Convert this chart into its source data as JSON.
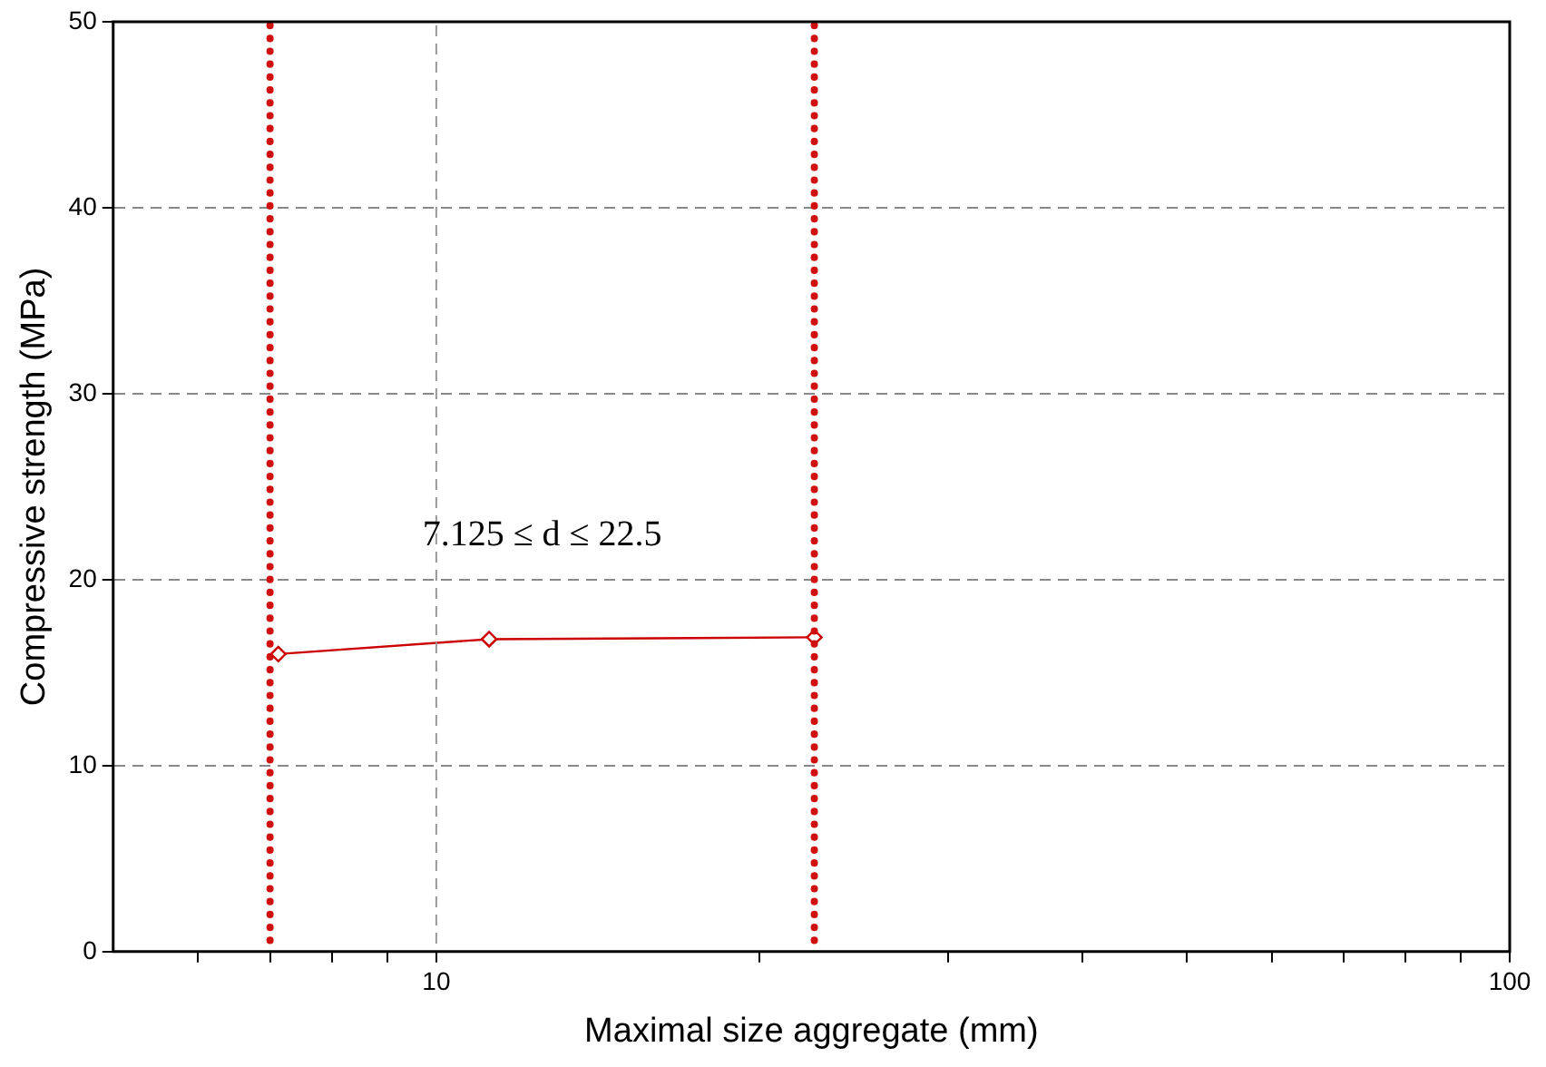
{
  "chart_data": {
    "type": "line",
    "xlabel": "Maximal size aggregate (mm)",
    "ylabel": "Compressive strength (MPa)",
    "x": [
      7.125,
      11.2,
      22.5
    ],
    "series": [
      {
        "color": "#cc0000",
        "values": [
          16.0,
          16.8,
          16.9
        ]
      }
    ],
    "log": "x",
    "xlim": [
      5,
      100
    ],
    "xticks": [
      {
        "value": 6,
        "label": null
      },
      {
        "value": 7,
        "label": null
      },
      {
        "value": 8,
        "label": null
      },
      {
        "value": 9,
        "label": null
      },
      10,
      {
        "value": 20,
        "label": null
      },
      {
        "value": 30,
        "label": null
      },
      {
        "value": 40,
        "label": null
      },
      {
        "value": 50,
        "label": null
      },
      {
        "value": 60,
        "label": null
      },
      {
        "value": 70,
        "label": null
      },
      {
        "value": 80,
        "label": null
      },
      {
        "value": 90,
        "label": null
      },
      100
    ],
    "ylim": [
      0,
      50
    ],
    "yticks": [
      0,
      10,
      20,
      30,
      40,
      50
    ],
    "grid": "y",
    "marker": "diamond",
    "line_style": "solid",
    "legend": false,
    "ref_lines": [
      {
        "axis": "x",
        "value": 10,
        "color": "#999999",
        "line_style": "dashed"
      },
      {
        "axis": "x",
        "value": 7,
        "color": "#d01010",
        "line_style": "dotted"
      },
      {
        "axis": "x",
        "value": 22.5,
        "color": "#d01010",
        "line_style": "dotted"
      }
    ],
    "annotations": [
      "7.125 ≤ d ≤ 22.5"
    ]
  }
}
